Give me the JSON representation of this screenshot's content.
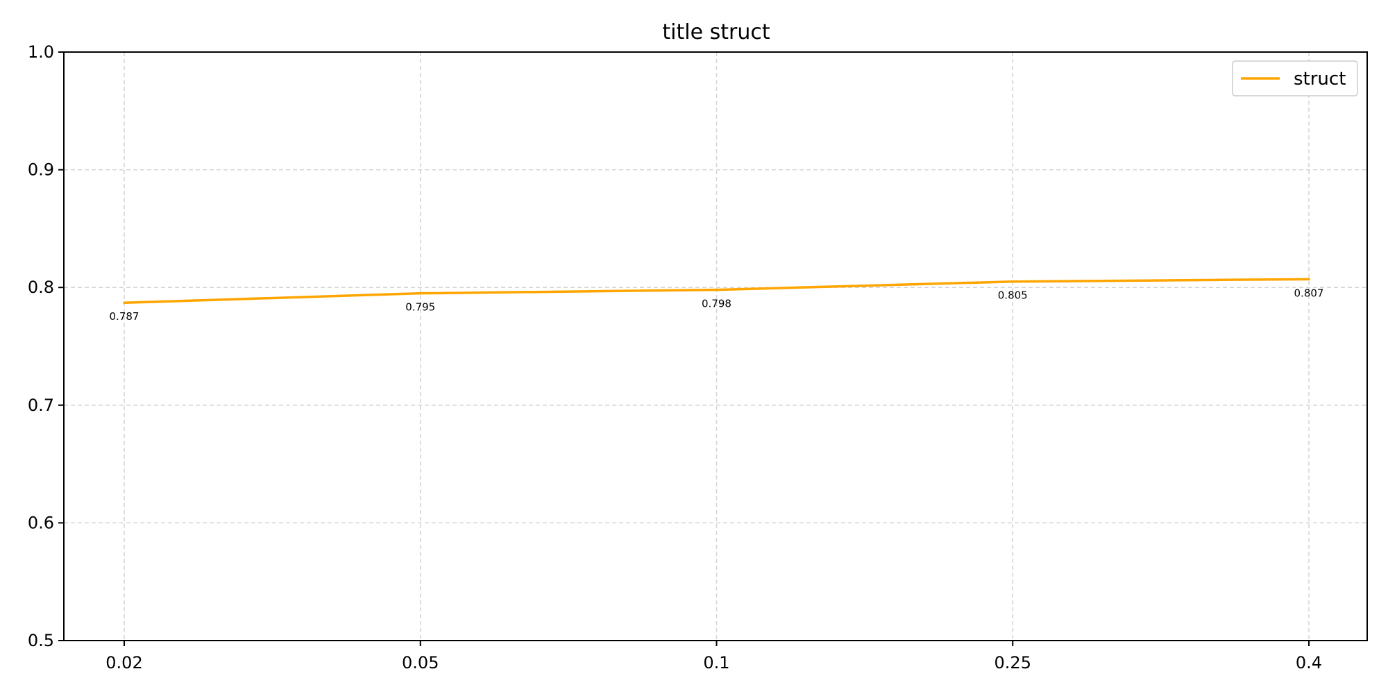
{
  "chart_data": {
    "type": "line",
    "title": "title struct",
    "xlabel": "",
    "ylabel": "",
    "categories": [
      "0.02",
      "0.05",
      "0.1",
      "0.25",
      "0.4"
    ],
    "series": [
      {
        "name": "struct",
        "color": "#FFA500",
        "values": [
          0.787,
          0.795,
          0.798,
          0.805,
          0.807
        ],
        "labels": [
          "0.787",
          "0.795",
          "0.798",
          "0.805",
          "0.807"
        ]
      }
    ],
    "ylim": [
      0.5,
      1.0
    ],
    "yticks": [
      "0.5",
      "0.6",
      "0.7",
      "0.8",
      "0.9",
      "1.0"
    ],
    "grid": true,
    "legend_position": "top-right"
  }
}
